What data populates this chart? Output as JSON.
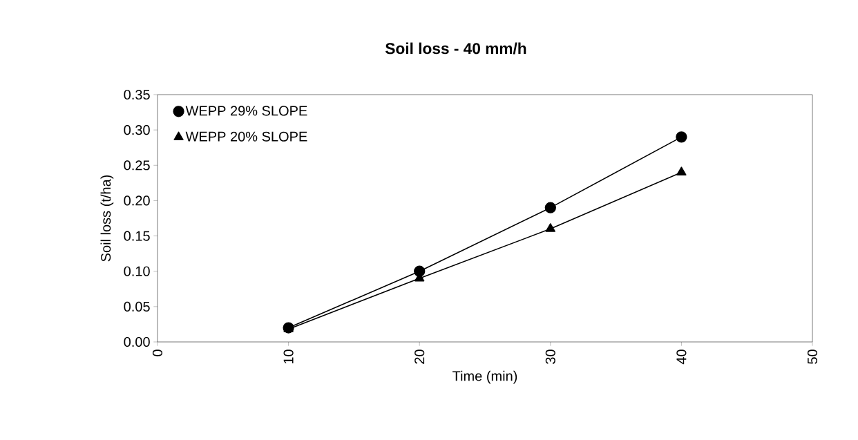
{
  "chart_data": {
    "type": "line",
    "title": "Soil loss - 40 mm/h",
    "xlabel": "Time (min)",
    "ylabel": "Soil loss (t/ha)",
    "xlim": [
      0,
      50
    ],
    "xticks": [
      0,
      10,
      20,
      30,
      40,
      50
    ],
    "ylim": [
      0,
      0.35
    ],
    "yticks": [
      {
        "value": 0,
        "label": "0.00"
      },
      {
        "value": 0.05,
        "label": "0.05"
      },
      {
        "value": 0.1,
        "label": "0.10"
      },
      {
        "value": 0.15,
        "label": "0.15"
      },
      {
        "value": 0.2,
        "label": "0.20"
      },
      {
        "value": 0.25,
        "label": "0.25"
      },
      {
        "value": 0.3,
        "label": "0.30"
      },
      {
        "value": 0.35,
        "label": "0.35"
      }
    ],
    "x": [
      10,
      20,
      30,
      40
    ],
    "grid": false,
    "legend": "top left",
    "line_style": "solid",
    "series": [
      {
        "name": "WEPP 29% SLOPE",
        "color": "#000000",
        "marker": "circle",
        "values": [
          0.02,
          0.1,
          0.19,
          0.29
        ]
      },
      {
        "name": "WEPP 20% SLOPE",
        "color": "#000000",
        "marker": "triangle",
        "values": [
          0.018,
          0.09,
          0.16,
          0.24
        ]
      }
    ]
  }
}
